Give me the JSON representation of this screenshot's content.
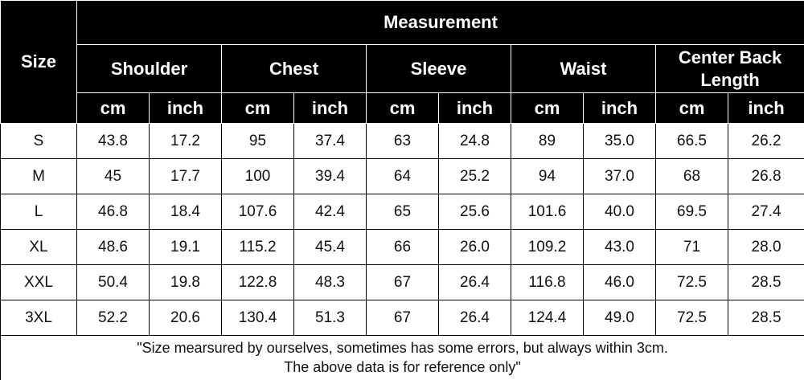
{
  "header": {
    "size_label": "Size",
    "measurement": "Measurement",
    "groups": [
      {
        "name": "Shoulder",
        "units": [
          "cm",
          "inch"
        ]
      },
      {
        "name": "Chest",
        "units": [
          "cm",
          "inch"
        ]
      },
      {
        "name": "Sleeve",
        "units": [
          "cm",
          "inch"
        ]
      },
      {
        "name": "Waist",
        "units": [
          "cm",
          "inch"
        ]
      },
      {
        "name": "Center Back Length",
        "units": [
          "cm",
          "inch"
        ]
      }
    ]
  },
  "table": {
    "rows": [
      [
        "S",
        "43.8",
        "17.2",
        "95",
        "37.4",
        "63",
        "24.8",
        "89",
        "35.0",
        "66.5",
        "26.2"
      ],
      [
        "M",
        "45",
        "17.7",
        "100",
        "39.4",
        "64",
        "25.2",
        "94",
        "37.0",
        "68",
        "26.8"
      ],
      [
        "L",
        "46.8",
        "18.4",
        "107.6",
        "42.4",
        "65",
        "25.6",
        "101.6",
        "40.0",
        "69.5",
        "27.4"
      ],
      [
        "XL",
        "48.6",
        "19.1",
        "115.2",
        "45.4",
        "66",
        "26.0",
        "109.2",
        "43.0",
        "71",
        "28.0"
      ],
      [
        "XXL",
        "50.4",
        "19.8",
        "122.8",
        "48.3",
        "67",
        "26.4",
        "116.8",
        "46.0",
        "72.5",
        "28.5"
      ],
      [
        "3XL",
        "52.2",
        "20.6",
        "130.4",
        "51.3",
        "67",
        "26.4",
        "124.4",
        "49.0",
        "72.5",
        "28.5"
      ]
    ]
  },
  "note": [
    "\"Size mearsured by ourselves, sometimes has some errors, but always within 3cm.",
    "The above data is for reference only\""
  ]
}
